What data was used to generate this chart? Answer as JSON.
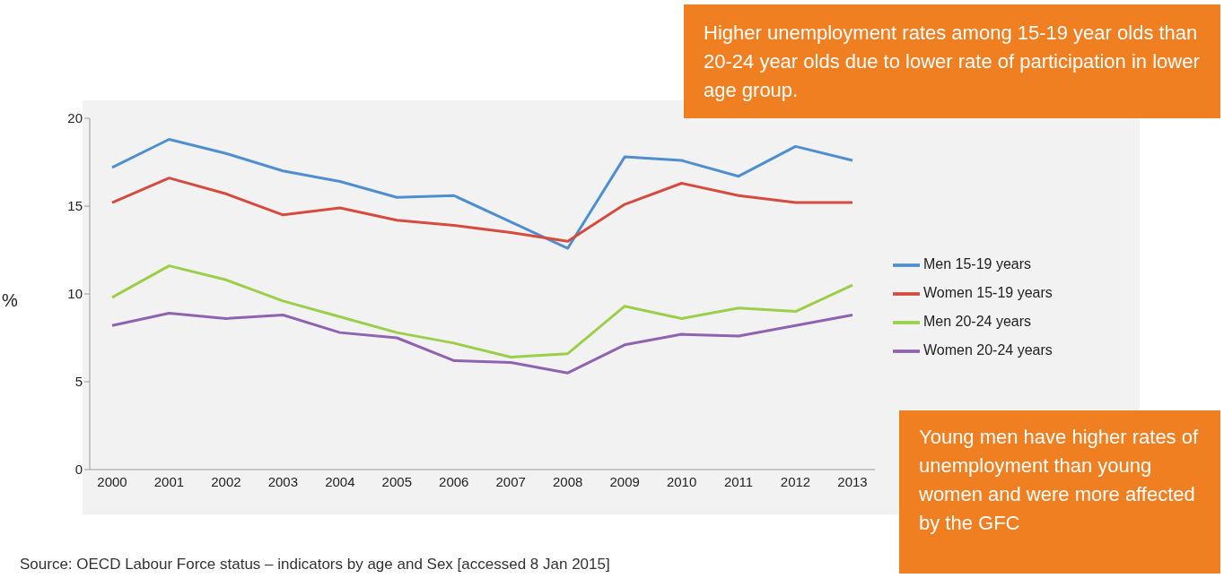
{
  "chart_data": {
    "type": "line",
    "ylabel": "%",
    "categories": [
      "2000",
      "2001",
      "2002",
      "2003",
      "2004",
      "2005",
      "2006",
      "2007",
      "2008",
      "2009",
      "2010",
      "2011",
      "2012",
      "2013"
    ],
    "series": [
      {
        "name": "Men 15-19 years",
        "color": "#4f8fd0",
        "values": [
          17.2,
          18.8,
          18.0,
          17.0,
          16.4,
          15.5,
          15.6,
          14.1,
          12.6,
          17.8,
          17.6,
          16.7,
          18.4,
          17.6
        ]
      },
      {
        "name": "Women 15-19 years",
        "color": "#d64b3f",
        "values": [
          15.2,
          16.6,
          15.7,
          14.5,
          14.9,
          14.2,
          13.9,
          13.5,
          13.0,
          15.1,
          16.3,
          15.6,
          15.2,
          15.2
        ]
      },
      {
        "name": "Men 20-24 years",
        "color": "#9bcf4a",
        "values": [
          9.8,
          11.6,
          10.8,
          9.6,
          8.7,
          7.8,
          7.2,
          6.4,
          6.6,
          9.3,
          8.6,
          9.2,
          9.0,
          10.5
        ]
      },
      {
        "name": "Women 20-24 years",
        "color": "#8e63b0",
        "values": [
          8.2,
          8.9,
          8.6,
          8.8,
          7.8,
          7.5,
          6.2,
          6.1,
          5.5,
          7.1,
          7.7,
          7.6,
          8.2,
          8.8
        ]
      }
    ],
    "ylim": [
      0,
      20
    ],
    "yticks": [
      0,
      5,
      10,
      15,
      20
    ],
    "grid": false,
    "legend": "right",
    "marker": "none",
    "line_style": "solid",
    "annotations": [
      "Higher unemployment rates among 15-19 year olds than 20-24 year olds due to lower rate of participation in lower age group.",
      "Young men have higher rates of unemployment than young women and were more affected by the GFC",
      "Source: OECD Labour Force status – indicators by age and Sex [accessed 8 Jan 2015]"
    ]
  }
}
